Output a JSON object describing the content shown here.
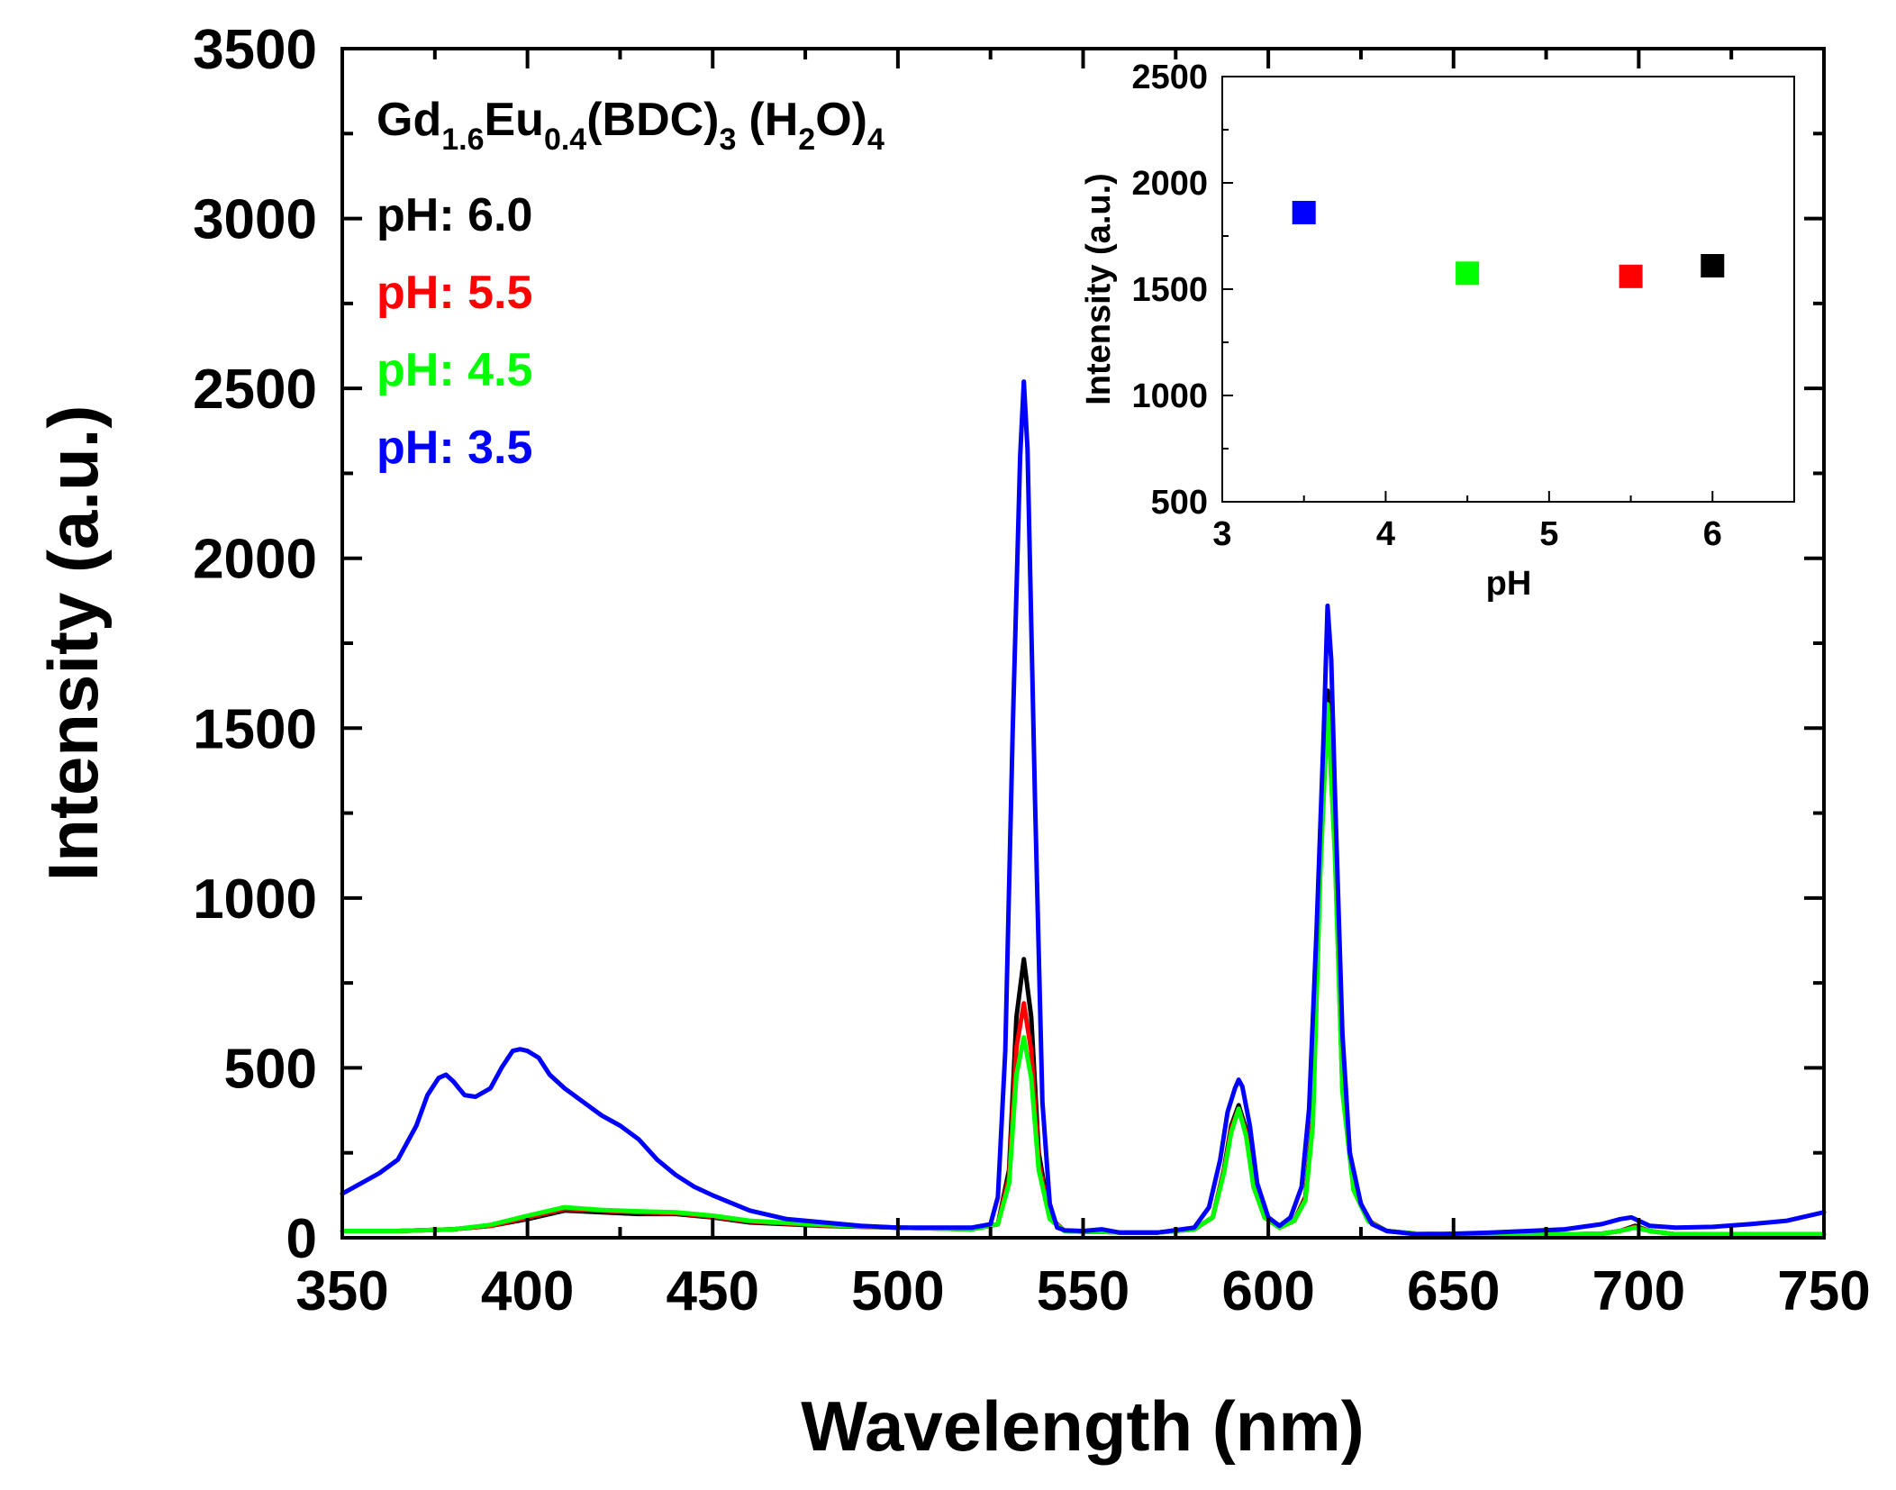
{
  "chart_data": [
    {
      "type": "line",
      "title": "",
      "xlabel": "Wavelength (nm)",
      "ylabel": "Intensity (a.u.)",
      "xlim": [
        350,
        750
      ],
      "ylim": [
        0,
        3500
      ],
      "xticks": [
        350,
        400,
        450,
        500,
        550,
        600,
        650,
        700,
        750
      ],
      "yticks": [
        0,
        500,
        1000,
        1500,
        2000,
        2500,
        3000,
        3500
      ],
      "xtick_labels": [
        "350",
        "400",
        "450",
        "500",
        "550",
        "600",
        "650",
        "700",
        "750"
      ],
      "ytick_labels": [
        "0",
        "500",
        "1000",
        "1500",
        "2000",
        "2500",
        "3000",
        "3500"
      ],
      "sample_label": {
        "base1": "Gd",
        "sub1": "1.6",
        "base2": "Eu",
        "sub2": "0.4",
        "base3": "(BDC)",
        "sub3": "3",
        "base4": "(H",
        "sub4": "2",
        "base5": "O)",
        "sub5": "4"
      },
      "series": [
        {
          "name": "pH: 6.0",
          "color": "#000000",
          "x": [
            350,
            365,
            380,
            390,
            400,
            410,
            420,
            430,
            440,
            450,
            460,
            480,
            500,
            520,
            527,
            530,
            532,
            534,
            536,
            538,
            541,
            545,
            550,
            555,
            560,
            570,
            580,
            585,
            588,
            590,
            592,
            594,
            596,
            599,
            603,
            607,
            610,
            612,
            614,
            616,
            618,
            620,
            623,
            627,
            632,
            640,
            650,
            660,
            680,
            690,
            695,
            699,
            703,
            710,
            730,
            750
          ],
          "y": [
            20,
            20,
            25,
            35,
            55,
            80,
            75,
            70,
            70,
            60,
            45,
            35,
            30,
            25,
            40,
            200,
            650,
            820,
            650,
            250,
            60,
            20,
            18,
            18,
            15,
            15,
            25,
            60,
            200,
            330,
            390,
            320,
            160,
            60,
            30,
            50,
            120,
            350,
            1100,
            1610,
            1150,
            450,
            150,
            50,
            20,
            12,
            10,
            10,
            10,
            12,
            20,
            35,
            20,
            10,
            10,
            10
          ]
        },
        {
          "name": "pH: 5.5",
          "color": "#ff0000",
          "x": [
            350,
            365,
            380,
            390,
            400,
            410,
            420,
            430,
            440,
            450,
            460,
            480,
            500,
            520,
            527,
            530,
            532,
            534,
            536,
            538,
            541,
            545,
            550,
            555,
            560,
            570,
            580,
            585,
            588,
            590,
            592,
            594,
            596,
            599,
            603,
            607,
            610,
            612,
            614,
            616,
            618,
            620,
            623,
            627,
            632,
            640,
            650,
            660,
            680,
            690,
            695,
            699,
            703,
            710,
            730,
            750
          ],
          "y": [
            20,
            20,
            25,
            35,
            60,
            85,
            80,
            75,
            72,
            62,
            48,
            36,
            30,
            25,
            40,
            180,
            560,
            690,
            550,
            220,
            60,
            20,
            18,
            18,
            15,
            15,
            25,
            60,
            195,
            320,
            380,
            310,
            150,
            60,
            30,
            50,
            115,
            340,
            1080,
            1570,
            1130,
            440,
            145,
            50,
            20,
            12,
            10,
            10,
            10,
            12,
            20,
            32,
            20,
            10,
            10,
            10
          ]
        },
        {
          "name": "pH: 4.5",
          "color": "#00ff00",
          "x": [
            350,
            365,
            380,
            390,
            400,
            410,
            420,
            430,
            440,
            450,
            460,
            480,
            500,
            520,
            527,
            530,
            532,
            534,
            536,
            538,
            541,
            545,
            550,
            555,
            560,
            570,
            580,
            585,
            588,
            590,
            592,
            594,
            596,
            599,
            603,
            607,
            610,
            612,
            614,
            616,
            618,
            620,
            623,
            627,
            632,
            640,
            650,
            660,
            680,
            690,
            695,
            699,
            703,
            710,
            730,
            750
          ],
          "y": [
            20,
            20,
            25,
            38,
            65,
            90,
            82,
            78,
            75,
            65,
            50,
            38,
            30,
            25,
            40,
            160,
            480,
            590,
            470,
            200,
            55,
            20,
            18,
            18,
            15,
            15,
            25,
            60,
            190,
            310,
            380,
            300,
            150,
            60,
            30,
            50,
            110,
            330,
            1060,
            1570,
            1120,
            430,
            140,
            48,
            20,
            12,
            10,
            10,
            10,
            12,
            20,
            30,
            20,
            10,
            10,
            10
          ]
        },
        {
          "name": "pH: 3.5",
          "color": "#0000ff",
          "x": [
            350,
            355,
            360,
            365,
            370,
            373,
            376,
            378,
            380,
            383,
            386,
            390,
            393,
            396,
            398,
            400,
            403,
            406,
            410,
            415,
            420,
            425,
            430,
            435,
            440,
            445,
            450,
            460,
            470,
            480,
            490,
            500,
            510,
            520,
            525,
            527,
            529,
            531,
            533,
            534,
            535,
            537,
            539,
            541,
            543,
            545,
            550,
            555,
            560,
            570,
            580,
            584,
            587,
            589,
            591,
            592,
            593,
            595,
            597,
            600,
            603,
            606,
            609,
            611,
            613,
            615,
            616,
            617,
            618,
            620,
            622,
            625,
            628,
            632,
            640,
            650,
            660,
            670,
            680,
            690,
            695,
            698,
            700,
            703,
            710,
            720,
            730,
            740,
            750
          ],
          "y": [
            130,
            160,
            190,
            230,
            330,
            420,
            470,
            480,
            460,
            420,
            415,
            440,
            500,
            550,
            555,
            550,
            530,
            480,
            440,
            400,
            360,
            330,
            290,
            230,
            185,
            150,
            125,
            80,
            55,
            45,
            35,
            30,
            30,
            30,
            40,
            120,
            550,
            1500,
            2300,
            2520,
            2320,
            1300,
            400,
            100,
            30,
            22,
            20,
            25,
            15,
            15,
            30,
            90,
            230,
            370,
            440,
            465,
            445,
            330,
            160,
            60,
            35,
            60,
            150,
            380,
            900,
            1500,
            1860,
            1700,
            1300,
            600,
            250,
            100,
            40,
            20,
            10,
            12,
            15,
            20,
            25,
            40,
            55,
            60,
            50,
            35,
            30,
            32,
            40,
            50,
            75
          ]
        }
      ]
    },
    {
      "type": "scatter",
      "title": "",
      "xlabel": "pH",
      "ylabel": "Intensity (a.u.)",
      "xlim": [
        3,
        6.5
      ],
      "ylim": [
        500,
        2500
      ],
      "xticks": [
        3,
        4,
        5,
        6
      ],
      "yticks": [
        500,
        1000,
        1500,
        2000,
        2500
      ],
      "xtick_labels": [
        "3",
        "4",
        "5",
        "6"
      ],
      "ytick_labels": [
        "500",
        "1000",
        "1500",
        "2000",
        "2500"
      ],
      "points": [
        {
          "x": 3.5,
          "y": 1860,
          "color": "#0000ff",
          "label": "pH 3.5"
        },
        {
          "x": 4.5,
          "y": 1575,
          "color": "#00ff00",
          "label": "pH 4.5"
        },
        {
          "x": 5.5,
          "y": 1560,
          "color": "#ff0000",
          "label": "pH 5.5"
        },
        {
          "x": 6.0,
          "y": 1610,
          "color": "#000000",
          "label": "pH 6.0"
        }
      ]
    }
  ]
}
